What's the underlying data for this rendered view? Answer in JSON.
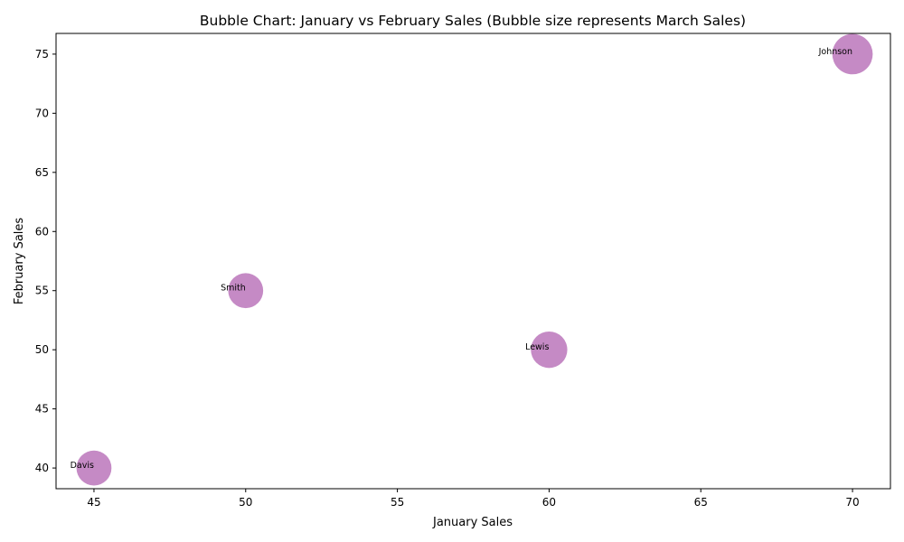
{
  "chart_data": {
    "type": "scatter",
    "title": "Bubble Chart: January vs February Sales (Bubble size represents March Sales)",
    "xlabel": "January Sales",
    "ylabel": "February Sales",
    "xlim": [
      43.75,
      71.25
    ],
    "ylim": [
      38.25,
      76.75
    ],
    "xticks": [
      45,
      50,
      55,
      60,
      65,
      70
    ],
    "yticks": [
      40,
      45,
      50,
      55,
      60,
      65,
      70,
      75
    ],
    "grid": false,
    "legend": "none",
    "bubble_color": "#a64ca6",
    "bubble_size_meaning": "March Sales",
    "points": [
      {
        "label": "Smith",
        "x": 50,
        "y": 55,
        "size": 60
      },
      {
        "label": "Johnson",
        "x": 70,
        "y": 75,
        "size": 80
      },
      {
        "label": "Lewis",
        "x": 60,
        "y": 50,
        "size": 65
      },
      {
        "label": "Davis",
        "x": 45,
        "y": 40,
        "size": 60
      }
    ]
  }
}
